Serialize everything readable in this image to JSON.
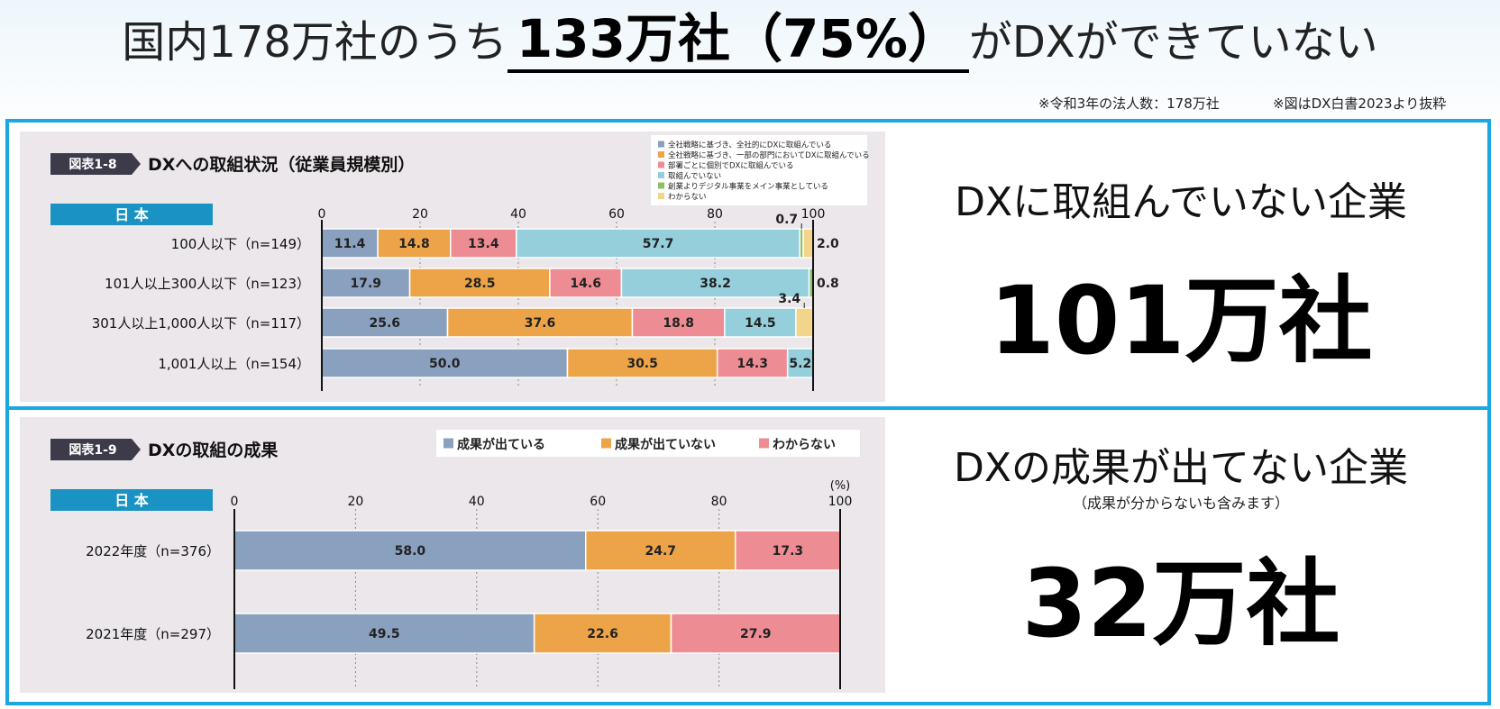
{
  "headline": {
    "prefix": "国内178万社のうち",
    "emphasis": "133万社（75%）",
    "suffix": "がDXができていない"
  },
  "notes": {
    "corp_count": "※令和3年の法人数：178万社",
    "source": "※図はDX白書2023より抜粋"
  },
  "colors": {
    "border": "#1aa7e2",
    "tag_dark": "#3d3a4a",
    "tag_blue": "#1a93c4",
    "s1": "#8aa0bf",
    "s2": "#eda448",
    "s3": "#ee8c93",
    "s4": "#95cfdc",
    "s5": "#8cc06a",
    "s6": "#f2d48a"
  },
  "right": {
    "top_title": "DXに取組んでいない企業",
    "top_value": "101万社",
    "bottom_title": "DXの成果が出てない企業",
    "bottom_sub": "（成果が分からないも含みます）",
    "bottom_value": "32万社"
  },
  "chart_data": [
    {
      "type": "bar",
      "orientation": "horizontal-stacked",
      "figure_tag": "図表1-8",
      "title": "DXへの取組状況（従業員規模別）",
      "region_tag": "日 本",
      "xlim": [
        0,
        100
      ],
      "xticks": [
        0,
        20,
        40,
        60,
        80,
        100
      ],
      "categories": [
        "100人以下（n=149）",
        "101人以上300人以下（n=123）",
        "301人以上1,000人以下（n=117）",
        "1,001人以上（n=154）"
      ],
      "series": [
        {
          "name": "全社戦略に基づき、全社的にDXに取組んでいる",
          "color": "#8aa0bf",
          "values": [
            11.4,
            17.9,
            25.6,
            50.0
          ]
        },
        {
          "name": "全社戦略に基づき、一部の部門においてDXに取組んでいる",
          "color": "#eda448",
          "values": [
            14.8,
            28.5,
            37.6,
            30.5
          ]
        },
        {
          "name": "部署ごとに個別でDXに取組んでいる",
          "color": "#ee8c93",
          "values": [
            13.4,
            14.6,
            18.8,
            14.3
          ]
        },
        {
          "name": "取組んでいない",
          "color": "#95cfdc",
          "values": [
            57.7,
            38.2,
            14.5,
            5.2
          ]
        },
        {
          "name": "創業よりデジタル事業をメイン事業としている",
          "color": "#8cc06a",
          "values": [
            0.7,
            0.8,
            0,
            0
          ]
        },
        {
          "name": "わからない",
          "color": "#f2d48a",
          "values": [
            2.0,
            0,
            3.4,
            0
          ]
        }
      ],
      "labels": [
        [
          "11.4",
          "14.8",
          "13.4",
          "57.7",
          "0.7",
          "2.0"
        ],
        [
          "17.9",
          "28.5",
          "14.6",
          "38.2",
          "0.8",
          ""
        ],
        [
          "25.6",
          "37.6",
          "18.8",
          "14.5",
          "",
          "3.4"
        ],
        [
          "50.0",
          "30.5",
          "14.3",
          "5.2",
          "",
          ""
        ]
      ],
      "legend_position": "top-right",
      "grid": true
    },
    {
      "type": "bar",
      "orientation": "horizontal-stacked",
      "figure_tag": "図表1-9",
      "title": "DXの取組の成果",
      "region_tag": "日 本",
      "unit": "(%)",
      "xlim": [
        0,
        100
      ],
      "xticks": [
        0,
        20,
        40,
        60,
        80,
        100
      ],
      "categories": [
        "2022年度（n=376）",
        "2021年度（n=297）"
      ],
      "series": [
        {
          "name": "成果が出ている",
          "color": "#8aa0bf",
          "values": [
            58.0,
            49.5
          ]
        },
        {
          "name": "成果が出ていない",
          "color": "#eda448",
          "values": [
            24.7,
            22.6
          ]
        },
        {
          "name": "わからない",
          "color": "#ee8c93",
          "values": [
            17.3,
            27.9
          ]
        }
      ],
      "labels": [
        [
          "58.0",
          "24.7",
          "17.3"
        ],
        [
          "49.5",
          "22.6",
          "27.9"
        ]
      ],
      "legend_position": "top",
      "grid": true
    }
  ]
}
